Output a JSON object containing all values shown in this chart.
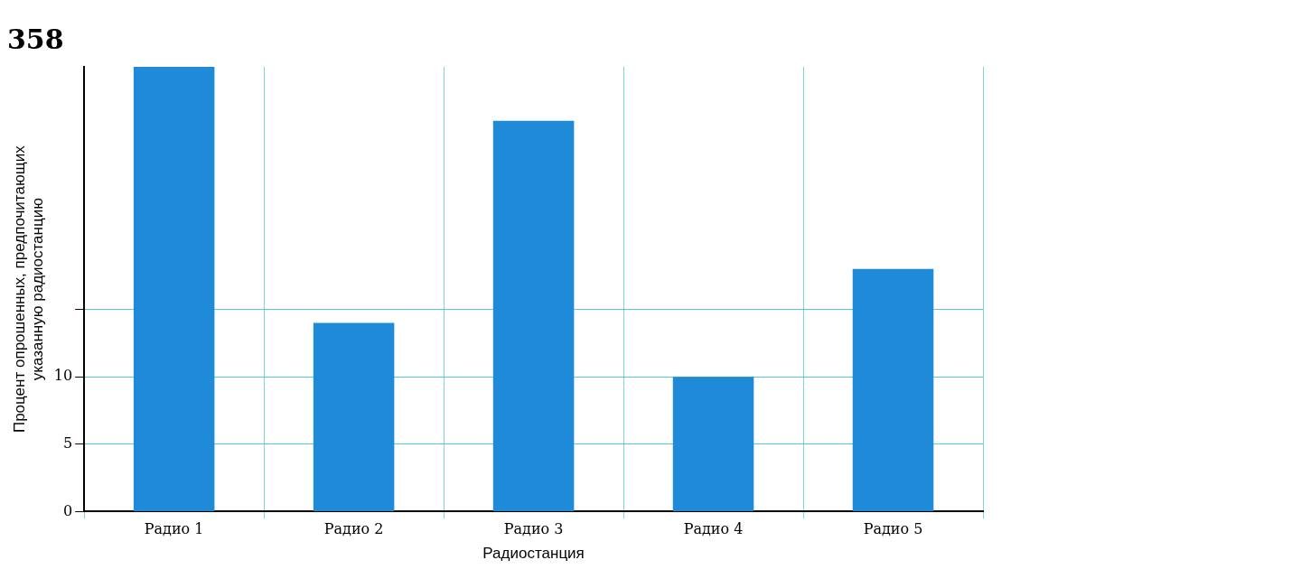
{
  "chart_data": {
    "type": "bar",
    "title": "358",
    "xlabel": "Радиостанция",
    "ylabel": "Процент опрошенных, предпочитающих указанную радиостанцию",
    "categories": [
      "Радио 1",
      "Радио 2",
      "Радио 3",
      "Радио 4",
      "Радио 5"
    ],
    "values": [
      33,
      14,
      29,
      10,
      18
    ],
    "color": "#1e8ad8",
    "ylim": [
      0,
      33
    ],
    "yticks": [
      0,
      5,
      10,
      {
        "value": 15,
        "label": null
      }
    ],
    "grid": true,
    "legend": false
  }
}
